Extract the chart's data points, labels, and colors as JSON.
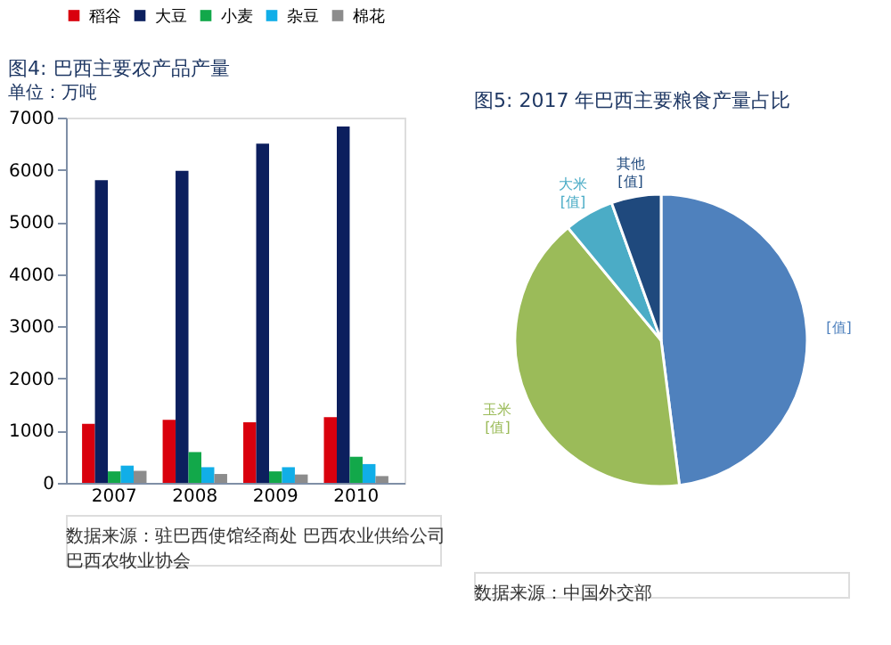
{
  "chart_data": [
    {
      "type": "bar",
      "title": "图4: 巴西主要农产品产量",
      "subtitle": "单位：万吨",
      "categories": [
        "2007",
        "2008",
        "2009",
        "2010"
      ],
      "series": [
        {
          "name": "稻谷",
          "color": "#d9000d",
          "values": [
            1130,
            1210,
            1160,
            1260
          ]
        },
        {
          "name": "大豆",
          "color": "#0c1f5e",
          "values": [
            5800,
            5980,
            6500,
            6830
          ]
        },
        {
          "name": "小麦",
          "color": "#12a84a",
          "values": [
            220,
            590,
            220,
            500
          ]
        },
        {
          "name": "杂豆",
          "color": "#11aee8",
          "values": [
            330,
            300,
            300,
            360
          ]
        },
        {
          "name": "棉花",
          "color": "#8c8c8c",
          "values": [
            230,
            170,
            160,
            130
          ]
        }
      ],
      "ylim": [
        0,
        7000
      ],
      "yticks": [
        0,
        1000,
        2000,
        3000,
        4000,
        5000,
        6000,
        7000
      ],
      "grid": false,
      "legend": "top",
      "annotations": [
        "数据来源：驻巴西使馆经商处 巴西农业供给公司",
        "巴西农牧业协会"
      ]
    },
    {
      "type": "pie",
      "title": "图5: 2017 年巴西主要粮食产量占比",
      "categories": [
        null,
        "玉米",
        "大米",
        "其他"
      ],
      "values": [
        48,
        41,
        5.5,
        5.5
      ],
      "colors": [
        "#4f81bd",
        "#9bbb59",
        "#4bacc6",
        "#1f497d"
      ],
      "value_labels": [
        "[值]",
        "[值]",
        "[值]",
        "[值]"
      ],
      "annotations": [
        "数据来源：中国外交部"
      ]
    }
  ]
}
